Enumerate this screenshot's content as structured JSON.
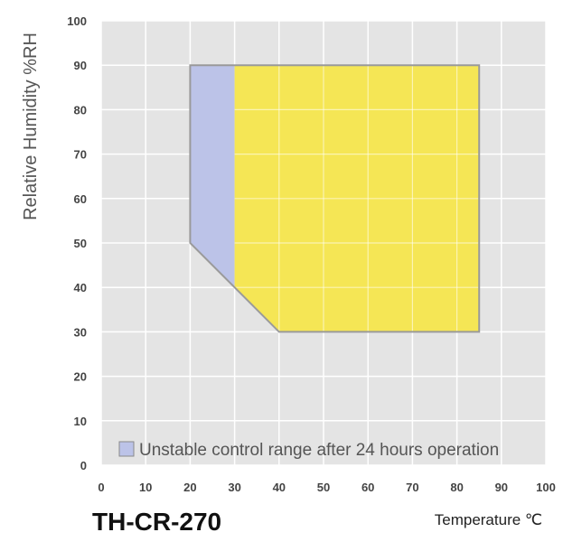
{
  "chart_data": {
    "type": "area",
    "title": "TH-CR-270",
    "xlabel": "Temperature ℃",
    "ylabel": "Relative Humidity %RH",
    "xlim": [
      0,
      100
    ],
    "ylim": [
      0,
      100
    ],
    "xticks": [
      "0",
      "10",
      "20",
      "30",
      "40",
      "50",
      "60",
      "70",
      "80",
      "90",
      "100"
    ],
    "yticks": [
      "0",
      "10",
      "20",
      "30",
      "40",
      "50",
      "60",
      "70",
      "80",
      "90",
      "100"
    ],
    "grid": true,
    "legend_position": "bottom-left",
    "series": [
      {
        "name": "Unstable control range after 24 hours operation",
        "color": "#bcc3e8",
        "polygon": [
          [
            20,
            90
          ],
          [
            30,
            90
          ],
          [
            30,
            40
          ],
          [
            20,
            50
          ]
        ]
      },
      {
        "color": "#f5e655",
        "polygon": [
          [
            30,
            90
          ],
          [
            85,
            90
          ],
          [
            85,
            30
          ],
          [
            40,
            30
          ],
          [
            30,
            40
          ]
        ]
      }
    ],
    "outline": {
      "color": "#9a9a9a",
      "polygon": [
        [
          20,
          90
        ],
        [
          85,
          90
        ],
        [
          85,
          30
        ],
        [
          40,
          30
        ],
        [
          20,
          50
        ]
      ]
    },
    "background_color": "#e4e4e4",
    "grid_color": "#ffffff"
  }
}
